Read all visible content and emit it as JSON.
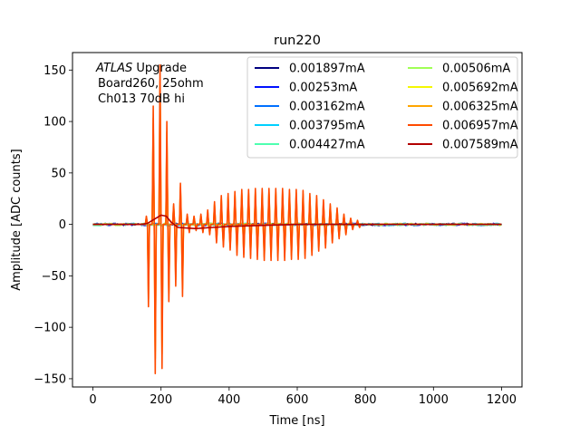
{
  "chart_data": {
    "type": "line",
    "title": "run220",
    "xlabel": "Time [ns]",
    "ylabel": "Amplitude [ADC counts]",
    "xlim": [
      -60,
      1260
    ],
    "ylim": [
      -158,
      167
    ],
    "xticks": [
      0,
      200,
      400,
      600,
      800,
      1000,
      1200
    ],
    "yticks": [
      -150,
      -100,
      -50,
      0,
      50,
      100,
      150
    ],
    "annotation": {
      "line1_italic": "ATLAS",
      "line1_rest": " Upgrade",
      "line2": "Board260, 25ohm",
      "line3": "Ch013 70dB hi"
    },
    "legend_location": "upper-right",
    "legend_columns": 2,
    "series": [
      {
        "name": "0.001897mA",
        "color": "#00007f",
        "scale": 0.004
      },
      {
        "name": "0.00253mA",
        "color": "#0010ff",
        "scale": 0.006
      },
      {
        "name": "0.003162mA",
        "color": "#0070ff",
        "scale": 0.008
      },
      {
        "name": "0.003795mA",
        "color": "#00d0ff",
        "scale": 0.01
      },
      {
        "name": "0.004427mA",
        "color": "#4effb0",
        "scale": 0.012
      },
      {
        "name": "0.00506mA",
        "color": "#a0ff56",
        "scale": 0.05
      },
      {
        "name": "0.005692mA",
        "color": "#f4f802",
        "scale": 0.85
      },
      {
        "name": "0.006325mA",
        "color": "#ffa500",
        "scale": 0.9
      },
      {
        "name": "0.006957mA",
        "color": "#ff4a00",
        "scale": 1.0
      },
      {
        "name": "0.007589mA",
        "color": "#b20000",
        "scale": 0.0
      }
    ],
    "pulse_train": {
      "unit": "ns",
      "spike_times": [
        160,
        180,
        200,
        220,
        240,
        260,
        280,
        300,
        320,
        340,
        360,
        380,
        400,
        420,
        440,
        460,
        480,
        500,
        520,
        540,
        560,
        580,
        600,
        620,
        640,
        660,
        680,
        700,
        720,
        740,
        760,
        780
      ],
      "positive_peaks": [
        8,
        115,
        155,
        100,
        20,
        40,
        10,
        8,
        10,
        14,
        22,
        28,
        30,
        32,
        34,
        34,
        35,
        35,
        35,
        35,
        35,
        34,
        34,
        33,
        30,
        28,
        24,
        20,
        16,
        10,
        6,
        4
      ],
      "negative_peaks": [
        -80,
        -145,
        -140,
        -75,
        -60,
        -70,
        -8,
        -6,
        -8,
        -10,
        -18,
        -22,
        -25,
        -30,
        -32,
        -33,
        -34,
        -35,
        -35,
        -35,
        -35,
        -34,
        -34,
        -33,
        -30,
        -26,
        -23,
        -18,
        -14,
        -10,
        -5,
        -3
      ]
    },
    "baseline_pulse": {
      "series": "0.007589mA",
      "points": [
        [
          0,
          0
        ],
        [
          140,
          0
        ],
        [
          160,
          1
        ],
        [
          180,
          5
        ],
        [
          200,
          9
        ],
        [
          215,
          8
        ],
        [
          230,
          2
        ],
        [
          250,
          -3
        ],
        [
          300,
          -4
        ],
        [
          350,
          -3
        ],
        [
          400,
          -2
        ],
        [
          500,
          -1
        ],
        [
          600,
          0
        ],
        [
          700,
          0
        ],
        [
          800,
          0
        ],
        [
          1200,
          0
        ]
      ]
    }
  }
}
